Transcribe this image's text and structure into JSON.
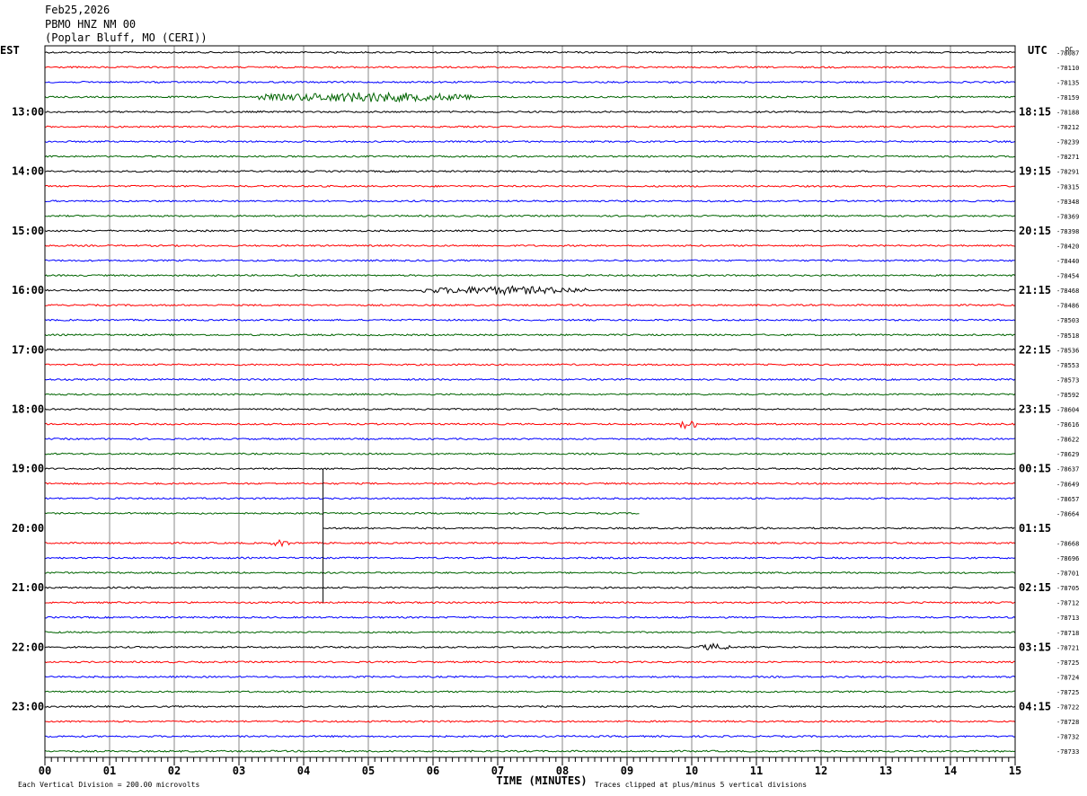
{
  "header": {
    "date": "Feb25,2026",
    "station": "PBMO HNZ NM 00",
    "location": "(Poplar Bluff, MO (CERI))"
  },
  "chart_data": {
    "type": "line",
    "title": "Feb25,2026",
    "left_timezone": "EST",
    "right_timezone": "UTC",
    "xlabel": "TIME (MINUTES)",
    "xlim": [
      0,
      15
    ],
    "x_ticks": [
      "00",
      "01",
      "02",
      "03",
      "04",
      "05",
      "06",
      "07",
      "08",
      "09",
      "10",
      "11",
      "12",
      "13",
      "14",
      "15"
    ],
    "trace_colors": [
      "#000000",
      "#ff0000",
      "#0000ff",
      "#006400"
    ],
    "left_hour_labels": [
      "13:00",
      "14:00",
      "15:00",
      "16:00",
      "17:00",
      "18:00",
      "19:00",
      "20:00",
      "21:00",
      "22:00",
      "23:00"
    ],
    "right_hour_labels": [
      "18:15",
      "19:15",
      "20:15",
      "21:15",
      "22:15",
      "23:15",
      "00:15",
      "01:15",
      "02:15",
      "03:15",
      "04:15"
    ],
    "dc_label": "DC",
    "dc_offsets": [
      "-78087",
      "-78110",
      "-78135",
      "-78159",
      "-78188",
      "-78212",
      "-78239",
      "-78271",
      "-78291",
      "-78315",
      "-78348",
      "-78369",
      "-78398",
      "-78420",
      "-78440",
      "-78454",
      "-78468",
      "-78486",
      "-78503",
      "-78518",
      "-78536",
      "-78553",
      "-78573",
      "-78592",
      "-78604",
      "-78616",
      "-78622",
      "-78629",
      "-78637",
      "-78649",
      "-78657",
      "-78664",
      "",
      "-78668",
      "-78696",
      "-78701",
      "-78705",
      "-78712",
      "-78713",
      "-78718",
      "-78721",
      "-78725",
      "-78724",
      "-78725",
      "-78722",
      "-78728",
      "-78732",
      "-78733"
    ],
    "traces_count": 48,
    "events": [
      {
        "trace": 3,
        "x_start": 3.3,
        "x_end": 6.6,
        "amp": 5
      },
      {
        "trace": 16,
        "x_start": 5.8,
        "x_end": 8.4,
        "amp": 4
      },
      {
        "trace": 25,
        "x_start": 9.8,
        "x_end": 10.1,
        "amp": 5
      },
      {
        "trace": 33,
        "x_start": 3.5,
        "x_end": 3.8,
        "amp": 3
      },
      {
        "trace": 40,
        "x_start": 10.1,
        "x_end": 10.6,
        "amp": 3
      }
    ],
    "gap": {
      "trace_end_minutes": 9.2,
      "trace_end_index": 31,
      "resume_minutes": 4.3
    },
    "footer_left": "Each Vertical Division =  200.00 microvolts",
    "footer_right": "Traces clipped at plus/minus 5 vertical divisions"
  }
}
